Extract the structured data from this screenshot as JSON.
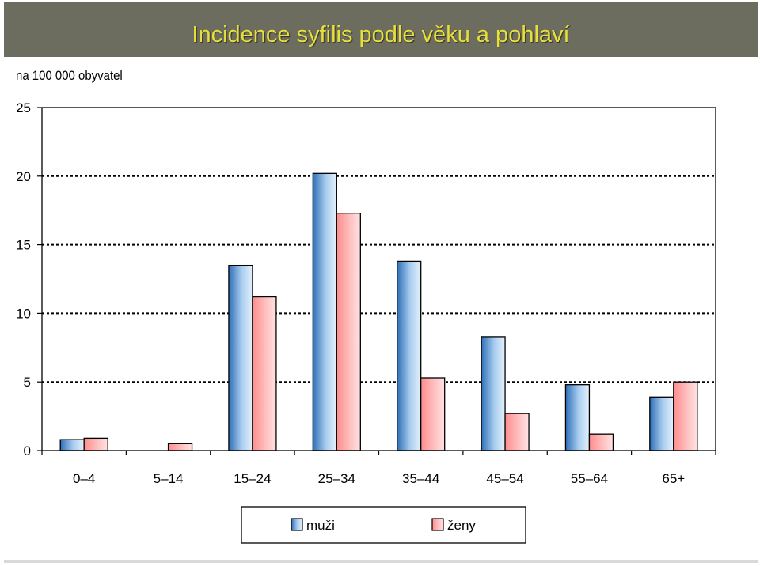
{
  "title": "Incidence syfilis podle věku a pohlaví",
  "chart_data": {
    "type": "bar",
    "ylabel": "na 100 000 obyvatel",
    "ylim": [
      0,
      25
    ],
    "yticks": [
      0,
      5,
      10,
      15,
      20,
      25
    ],
    "grid": "horizontal dotted",
    "legend_position": "bottom",
    "categories": [
      "0–4",
      "5–14",
      "15–24",
      "25–34",
      "35–44",
      "45–54",
      "55–64",
      "65+"
    ],
    "series": [
      {
        "name": "muži",
        "color": "#4f8fd0",
        "values": [
          0.8,
          0.0,
          13.5,
          20.2,
          13.8,
          8.3,
          4.8,
          3.9
        ]
      },
      {
        "name": "ženy",
        "color": "#ff9b9b",
        "values": [
          0.9,
          0.5,
          11.2,
          17.3,
          5.3,
          2.7,
          1.2,
          5.0
        ]
      }
    ]
  }
}
